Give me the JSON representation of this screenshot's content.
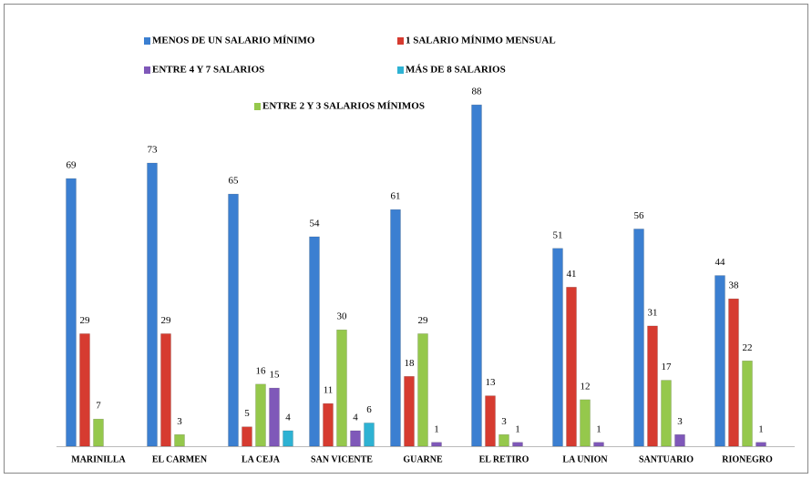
{
  "chart_data": {
    "type": "bar",
    "categories": [
      "MARINILLA",
      "EL CARMEN",
      "LA CEJA",
      "SAN VICENTE",
      "GUARNE",
      "EL RETIRO",
      "LA UNION",
      "SANTUARIO",
      "RIONEGRO"
    ],
    "series": [
      {
        "name": "MENOS DE UN SALARIO MÍNIMO",
        "color": "#3b7fd1",
        "values": [
          69,
          73,
          65,
          54,
          61,
          88,
          51,
          56,
          44
        ]
      },
      {
        "name": "1 SALARIO MÍNIMO MENSUAL",
        "color": "#d63b30",
        "values": [
          29,
          29,
          5,
          11,
          18,
          13,
          41,
          31,
          38
        ]
      },
      {
        "name": "ENTRE 2 Y 3 SALARIOS MÍNIMOS",
        "color": "#95c84c",
        "values": [
          7,
          3,
          16,
          30,
          29,
          3,
          12,
          17,
          22
        ]
      },
      {
        "name": "ENTRE 4 Y 7 SALARIOS",
        "color": "#7f58b9",
        "values": [
          null,
          null,
          15,
          4,
          1,
          1,
          1,
          3,
          1
        ]
      },
      {
        "name": "MÁS DE 8 SALARIOS",
        "color": "#2eb2d3",
        "values": [
          null,
          null,
          4,
          6,
          null,
          null,
          null,
          null,
          null
        ]
      }
    ]
  }
}
